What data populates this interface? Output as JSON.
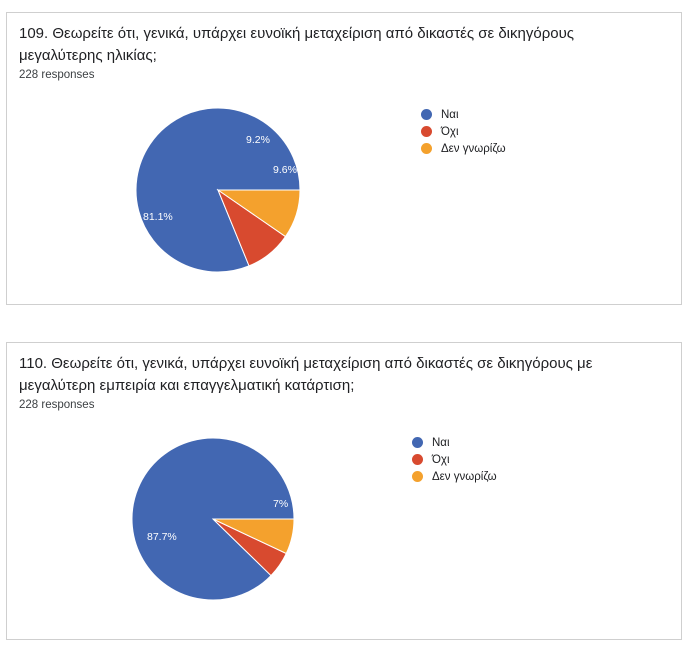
{
  "cards": [
    {
      "title": "109. Θεωρείτε ότι, γενικά, υπάρχει ευνοϊκή μεταχείριση από δικαστές σε δικηγόρους μεγαλύτερης ηλικίας;",
      "responses": "228 responses"
    },
    {
      "title": "110. Θεωρείτε ότι, γενικά, υπάρχει ευνοϊκή μεταχείριση από δικαστές σε δικηγόρους με μεγαλύτερη εμπειρία και επαγγελματική κατάρτιση;",
      "responses": "228 responses"
    }
  ],
  "chart_data": [
    {
      "type": "pie",
      "title": "109. Θεωρείτε ότι, γενικά, υπάρχει ευνοϊκή μεταχείριση από δικαστές σε δικηγόρους μεγαλύτερης ηλικίας;",
      "categories": [
        "Ναι",
        "Όχι",
        "Δεν γνωρίζω"
      ],
      "values": [
        81.1,
        9.2,
        9.6
      ],
      "labels": [
        "81.1%",
        "9.2%",
        "9.6%"
      ],
      "colors": [
        "#4267b2",
        "#d84a2f",
        "#f4a12d"
      ],
      "legend_position": "right"
    },
    {
      "type": "pie",
      "title": "110. Θεωρείτε ότι, γενικά, υπάρχει ευνοϊκή μεταχείριση από δικαστές σε δικηγόρους με μεγαλύτερη εμπειρία και επαγγελματική κατάρτιση;",
      "categories": [
        "Ναι",
        "Όχι",
        "Δεν γνωρίζω"
      ],
      "values": [
        87.7,
        5.3,
        7.0
      ],
      "labels": [
        "87.7%",
        "",
        "7%"
      ],
      "colors": [
        "#4267b2",
        "#d84a2f",
        "#f4a12d"
      ],
      "legend_position": "right"
    }
  ]
}
